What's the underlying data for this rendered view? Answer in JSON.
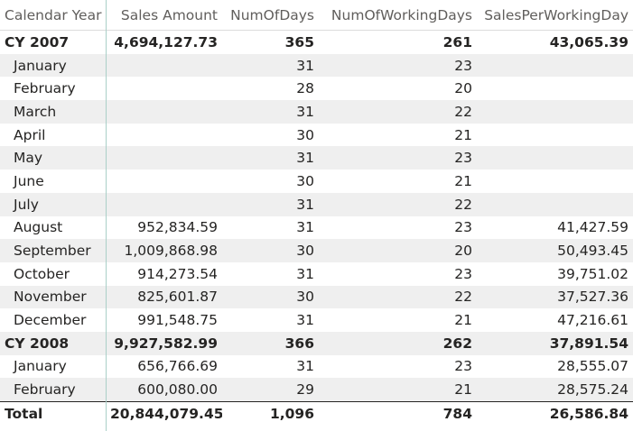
{
  "headers": [
    "Calendar Year",
    "Sales Amount",
    "NumOfDays",
    "NumOfWorkingDays",
    "SalesPerWorkingDay"
  ],
  "rows": [
    {
      "type": "group",
      "label": "CY 2007",
      "sales": "4,694,127.73",
      "days": "365",
      "working": "261",
      "per_day": "43,065.39"
    },
    {
      "type": "child",
      "label": "January",
      "sales": "",
      "days": "31",
      "working": "23",
      "per_day": ""
    },
    {
      "type": "child",
      "label": "February",
      "sales": "",
      "days": "28",
      "working": "20",
      "per_day": ""
    },
    {
      "type": "child",
      "label": "March",
      "sales": "",
      "days": "31",
      "working": "22",
      "per_day": ""
    },
    {
      "type": "child",
      "label": "April",
      "sales": "",
      "days": "30",
      "working": "21",
      "per_day": ""
    },
    {
      "type": "child",
      "label": "May",
      "sales": "",
      "days": "31",
      "working": "23",
      "per_day": ""
    },
    {
      "type": "child",
      "label": "June",
      "sales": "",
      "days": "30",
      "working": "21",
      "per_day": ""
    },
    {
      "type": "child",
      "label": "July",
      "sales": "",
      "days": "31",
      "working": "22",
      "per_day": ""
    },
    {
      "type": "child",
      "label": "August",
      "sales": "952,834.59",
      "days": "31",
      "working": "23",
      "per_day": "41,427.59"
    },
    {
      "type": "child",
      "label": "September",
      "sales": "1,009,868.98",
      "days": "30",
      "working": "20",
      "per_day": "50,493.45"
    },
    {
      "type": "child",
      "label": "October",
      "sales": "914,273.54",
      "days": "31",
      "working": "23",
      "per_day": "39,751.02"
    },
    {
      "type": "child",
      "label": "November",
      "sales": "825,601.87",
      "days": "30",
      "working": "22",
      "per_day": "37,527.36"
    },
    {
      "type": "child",
      "label": "December",
      "sales": "991,548.75",
      "days": "31",
      "working": "21",
      "per_day": "47,216.61"
    },
    {
      "type": "group",
      "label": "CY 2008",
      "sales": "9,927,582.99",
      "days": "366",
      "working": "262",
      "per_day": "37,891.54"
    },
    {
      "type": "child",
      "label": "January",
      "sales": "656,766.69",
      "days": "31",
      "working": "23",
      "per_day": "28,555.07"
    },
    {
      "type": "child",
      "label": "February",
      "sales": "600,080.00",
      "days": "29",
      "working": "21",
      "per_day": "28,575.24"
    }
  ],
  "total": {
    "label": "Total",
    "sales": "20,844,079.45",
    "days": "1,096",
    "working": "784",
    "per_day": "26,586.84"
  },
  "colors": {
    "alt_row": "#efefef",
    "header_text": "#605e5c",
    "divider": "#aacfc8"
  }
}
